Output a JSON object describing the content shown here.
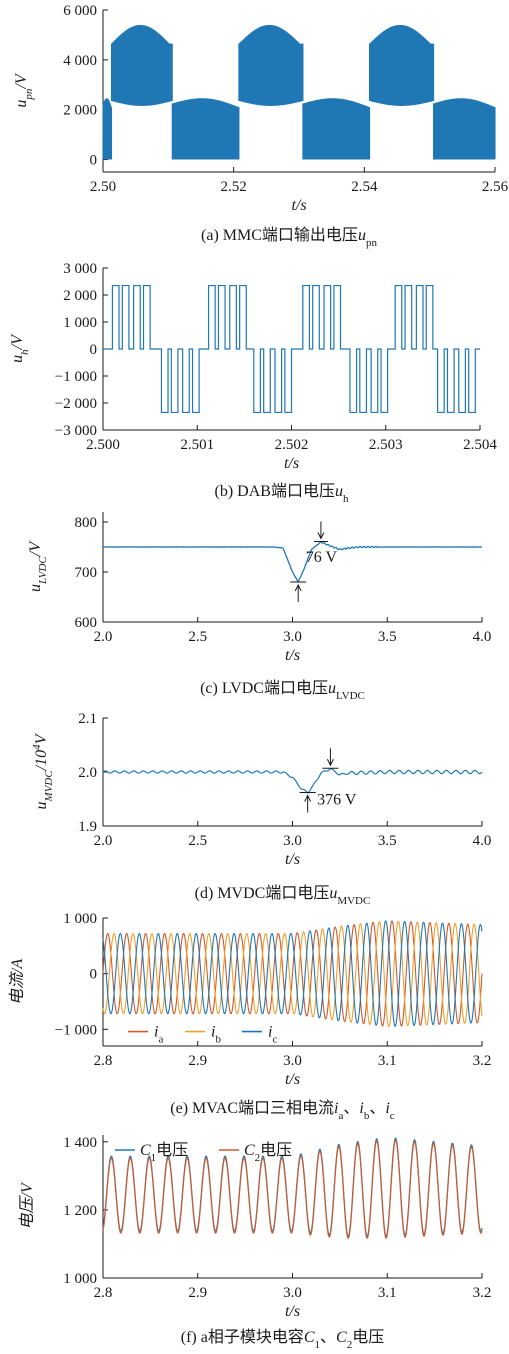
{
  "colors": {
    "blue": "#1f77b4",
    "orange": "#f0a030",
    "red": "#d05a2c",
    "axis": "#1a1a1a"
  },
  "chart_data": [
    {
      "id": "a",
      "type": "line",
      "caption": "(a)  MMC端口输出电压",
      "caption_var": "u",
      "caption_sub": "pn",
      "ylabel_var": "u",
      "ylabel_sub": "pn",
      "ylabel_unit": "/V",
      "xlabel": "t/s",
      "xlim": [
        2.5,
        2.56
      ],
      "ylim": [
        -500,
        6000
      ],
      "xticks": [
        2.5,
        2.52,
        2.54,
        2.56
      ],
      "xtick_labels": [
        "2.50",
        "2.52",
        "2.54",
        "2.56"
      ],
      "yticks": [
        0,
        2000,
        4000,
        6000
      ],
      "ytick_labels": [
        "0",
        "2 000",
        "4 000",
        "6 000"
      ],
      "series": [
        {
          "envelope_description": "PWM pulses switching between lower band (0 / ~2300 V) and upper band (~2300–5400 V)",
          "values": []
        }
      ]
    },
    {
      "id": "b",
      "type": "line",
      "caption": "(b)  DAB端口电压",
      "caption_var": "u",
      "caption_sub": "h",
      "ylabel_var": "u",
      "ylabel_sub": "h",
      "ylabel_unit": "/V",
      "xlabel": "t/s",
      "xlim": [
        2.5,
        2.504
      ],
      "ylim": [
        -3000,
        3000
      ],
      "xticks": [
        2.5,
        2.501,
        2.502,
        2.503,
        2.504
      ],
      "xtick_labels": [
        "2.500",
        "2.501",
        "2.502",
        "2.503",
        "2.504"
      ],
      "yticks": [
        -3000,
        -2000,
        -1000,
        0,
        1000,
        2000,
        3000
      ],
      "ytick_labels": [
        "−3 000",
        "−2 000",
        "−1 000",
        "0",
        "1 000",
        "2 000",
        "3 000"
      ],
      "levels": [
        2350,
        0,
        -2350
      ]
    },
    {
      "id": "c",
      "type": "line",
      "caption": "(c)  LVDC端口电压",
      "caption_var": "u",
      "caption_sub": "LVDC",
      "ylabel_var": "u",
      "ylabel_sub": "LVDC",
      "ylabel_unit": "/V",
      "xlabel": "t/s",
      "xlim": [
        2.0,
        4.0
      ],
      "ylim": [
        600,
        820
      ],
      "xticks": [
        2.0,
        2.5,
        3.0,
        3.5,
        4.0
      ],
      "xtick_labels": [
        "2.0",
        "2.5",
        "3.0",
        "3.5",
        "4.0"
      ],
      "yticks": [
        600,
        700,
        800
      ],
      "ytick_labels": [
        "600",
        "700",
        "800"
      ],
      "x": [
        2.0,
        2.9,
        2.95,
        3.0,
        3.03,
        3.06,
        3.1,
        3.15,
        3.2,
        3.25,
        3.3,
        3.35,
        3.4,
        3.5,
        4.0
      ],
      "y": [
        750,
        750,
        748,
        700,
        680,
        705,
        745,
        760,
        752,
        745,
        748,
        750,
        750,
        750,
        750
      ],
      "annotation": "76 V"
    },
    {
      "id": "d",
      "type": "line",
      "caption": "(d)  MVDC端口电压",
      "caption_var": "u",
      "caption_sub": "MVDC",
      "ylabel_var": "u",
      "ylabel_sub": "MVDC",
      "ylabel_unit": "/10",
      "ylabel_exp": "4",
      "ylabel_unit2": "V",
      "xlabel": "t/s",
      "xlim": [
        2.0,
        4.0
      ],
      "ylim": [
        1.9,
        2.1
      ],
      "xticks": [
        2.0,
        2.5,
        3.0,
        3.5,
        4.0
      ],
      "xtick_labels": [
        "2.0",
        "2.5",
        "3.0",
        "3.5",
        "4.0"
      ],
      "yticks": [
        1.9,
        2.0,
        2.1
      ],
      "ytick_labels": [
        "1.9",
        "2.0",
        "2.1"
      ],
      "x": [
        2.0,
        2.95,
        3.0,
        3.05,
        3.08,
        3.11,
        3.15,
        3.2,
        3.25,
        3.3,
        3.5,
        4.0
      ],
      "y": [
        2.0,
        2.0,
        1.99,
        1.968,
        1.962,
        1.975,
        1.998,
        2.006,
        1.995,
        1.998,
        2.0,
        2.0
      ],
      "annotation": "376 V"
    },
    {
      "id": "e",
      "type": "line",
      "caption": "(e)  MVAC端口三相电流",
      "caption_vars": [
        "i",
        "a",
        "、",
        "i",
        "b",
        "、",
        "i",
        "c"
      ],
      "ylabel": "电流/A",
      "xlabel": "t/s",
      "xlim": [
        2.8,
        3.2
      ],
      "ylim": [
        -1300,
        1000
      ],
      "xticks": [
        2.8,
        2.9,
        3.0,
        3.1,
        3.2
      ],
      "xtick_labels": [
        "2.8",
        "2.9",
        "3.0",
        "3.1",
        "3.2"
      ],
      "yticks": [
        -1000,
        0,
        1000
      ],
      "ytick_labels": [
        "−1 000",
        "0",
        "1 000"
      ],
      "frequency_hz": 50,
      "amplitude_x": [
        2.8,
        3.0,
        3.05,
        3.1,
        3.2
      ],
      "amplitude_y": [
        720,
        720,
        850,
        950,
        880
      ],
      "series": [
        {
          "name": "i",
          "sub": "a",
          "color": "#d05a2c",
          "phase_deg": 0
        },
        {
          "name": "i",
          "sub": "b",
          "color": "#f0a030",
          "phase_deg": -120
        },
        {
          "name": "i",
          "sub": "c",
          "color": "#1f77b4",
          "phase_deg": 120
        }
      ]
    },
    {
      "id": "f",
      "type": "line",
      "caption": "(f)  a相子模块电容",
      "caption_vars": [
        "C",
        "1",
        "、",
        "C",
        "2",
        "电压"
      ],
      "ylabel": "电压/V",
      "xlabel": "t/s",
      "xlim": [
        2.8,
        3.2
      ],
      "ylim": [
        1000,
        1420
      ],
      "xticks": [
        2.8,
        2.9,
        3.0,
        3.1,
        3.2
      ],
      "xtick_labels": [
        "2.8",
        "2.9",
        "3.0",
        "3.1",
        "3.2"
      ],
      "yticks": [
        1000,
        1200,
        1400
      ],
      "ytick_labels": [
        "1 000",
        "1 200",
        "1 400"
      ],
      "frequency_hz": 50,
      "mean_x": [
        2.8,
        3.0,
        3.05,
        3.1,
        3.2
      ],
      "mean_y": [
        1245,
        1245,
        1255,
        1265,
        1260
      ],
      "amplitude_y": [
        110,
        110,
        135,
        145,
        125
      ],
      "series": [
        {
          "name": "C",
          "sub": "1",
          "suffix": "电压",
          "color": "#1f77b4"
        },
        {
          "name": "C",
          "sub": "2",
          "suffix": "电压",
          "color": "#d05a2c"
        }
      ]
    }
  ]
}
